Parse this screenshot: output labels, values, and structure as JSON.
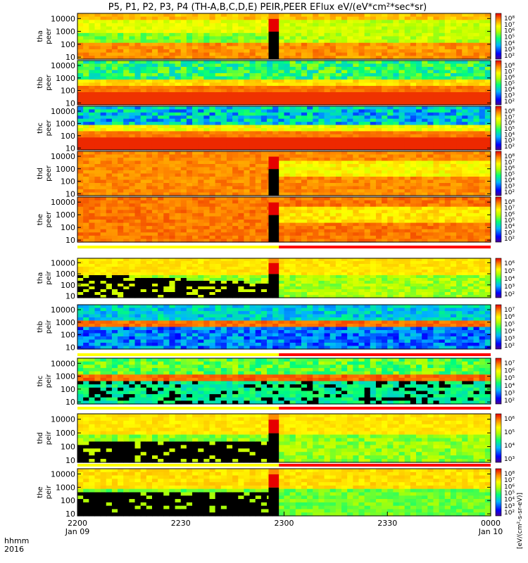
{
  "title": "P5, P1, P2, P3, P4 (TH-A,B,C,D,E) PEIR,PEER EFlux eV/(eV*cm²*sec*sr)",
  "chart_data": {
    "type": "heatmap",
    "title": "P5, P1, P2, P3, P4 (TH-A,B,C,D,E) PEIR,PEER EFlux eV/(eV*cm²*sec*sr)",
    "x_label_line1": "hhmm",
    "x_label_line2": "2016",
    "x_ticks": [
      {
        "t": 0,
        "label": "2200",
        "sub": "Jan 09"
      },
      {
        "t": 30,
        "label": "2230",
        "sub": ""
      },
      {
        "t": 60,
        "label": "2300",
        "sub": ""
      },
      {
        "t": 90,
        "label": "2330",
        "sub": ""
      },
      {
        "t": 120,
        "label": "0000",
        "sub": "Jan 10"
      }
    ],
    "x_range_minutes": [
      0,
      120
    ],
    "y_scale": "log",
    "y_range_eV": [
      7,
      25000
    ],
    "y_ticks": [
      {
        "v": 10,
        "label": "10"
      },
      {
        "v": 100,
        "label": "100"
      },
      {
        "v": 1000,
        "label": "1000"
      },
      {
        "v": 10000,
        "label": "10000"
      }
    ],
    "colorbar_unit": "[eV/(cm²-s-sr-eV)]",
    "panels": [
      {
        "probe": "tha",
        "species": "peer",
        "label1": "tha",
        "label2": "peer",
        "strip": false,
        "gap_minutes": [
          55.5,
          58.5
        ],
        "cb_labels": [
          "10⁸",
          "10⁷",
          "10⁶",
          "10⁵",
          "10⁴",
          "10³",
          "10²"
        ]
      },
      {
        "probe": "thb",
        "species": "peer",
        "label1": "thb",
        "label2": "peer",
        "strip": false,
        "gap_minutes": [],
        "cb_labels": [
          "10⁸",
          "10⁷",
          "10⁶",
          "10⁵",
          "10⁴",
          "10³",
          "10²"
        ]
      },
      {
        "probe": "thc",
        "species": "peer",
        "label1": "thc",
        "label2": "peer",
        "strip": false,
        "gap_minutes": [],
        "cb_labels": [
          "10⁸",
          "10⁷",
          "10⁶",
          "10⁵",
          "10⁴",
          "10³",
          "10²"
        ]
      },
      {
        "probe": "thd",
        "species": "peer",
        "label1": "thd",
        "label2": "peer",
        "strip": false,
        "gap_minutes": [
          55.5,
          58.5
        ],
        "cb_labels": [
          "10⁸",
          "10⁷",
          "10⁶",
          "10⁵",
          "10⁴",
          "10³",
          "10²"
        ]
      },
      {
        "probe": "the",
        "species": "peer",
        "label1": "the",
        "label2": "peer",
        "strip": false,
        "gap_minutes": [
          55.5,
          58.5
        ],
        "cb_labels": [
          "10⁸",
          "10⁷",
          "10⁶",
          "10⁵",
          "10⁴",
          "10³",
          "10²"
        ]
      },
      {
        "probe": "tha",
        "species": "peir",
        "label1": "tha",
        "label2": "peir",
        "strip": true,
        "gap_minutes": [
          55.5,
          58.5
        ],
        "cb_labels": [
          "10⁶",
          "10⁵",
          "10⁴",
          "10³",
          "10²"
        ]
      },
      {
        "probe": "thb",
        "species": "peir",
        "label1": "thb",
        "label2": "peir",
        "strip": false,
        "gap_minutes": [],
        "cb_labels": [
          "10⁷",
          "10⁶",
          "10⁵",
          "10⁴",
          "10³",
          "10²"
        ]
      },
      {
        "probe": "thc",
        "species": "peir",
        "label1": "thc",
        "label2": "peir",
        "strip": true,
        "gap_minutes": [],
        "cb_labels": [
          "10⁷",
          "10⁶",
          "10⁵",
          "10⁴",
          "10³",
          "10²"
        ]
      },
      {
        "probe": "thd",
        "species": "peir",
        "label1": "thd",
        "label2": "peir",
        "strip": true,
        "gap_minutes": [
          55.5,
          58.5
        ],
        "cb_labels": [
          "10⁶",
          "10⁵",
          "10⁴",
          "10³"
        ]
      },
      {
        "probe": "the",
        "species": "peir",
        "label1": "the",
        "label2": "peir",
        "strip": true,
        "gap_minutes": [
          55.5,
          58.5
        ],
        "cb_labels": [
          "10⁸",
          "10⁷",
          "10⁶",
          "10⁵",
          "10⁴",
          "10³",
          "10²"
        ]
      }
    ],
    "mode_strip_colors": {
      "before": "#ffff00",
      "after": "#ff0000",
      "switch_minute": 58.5
    }
  }
}
